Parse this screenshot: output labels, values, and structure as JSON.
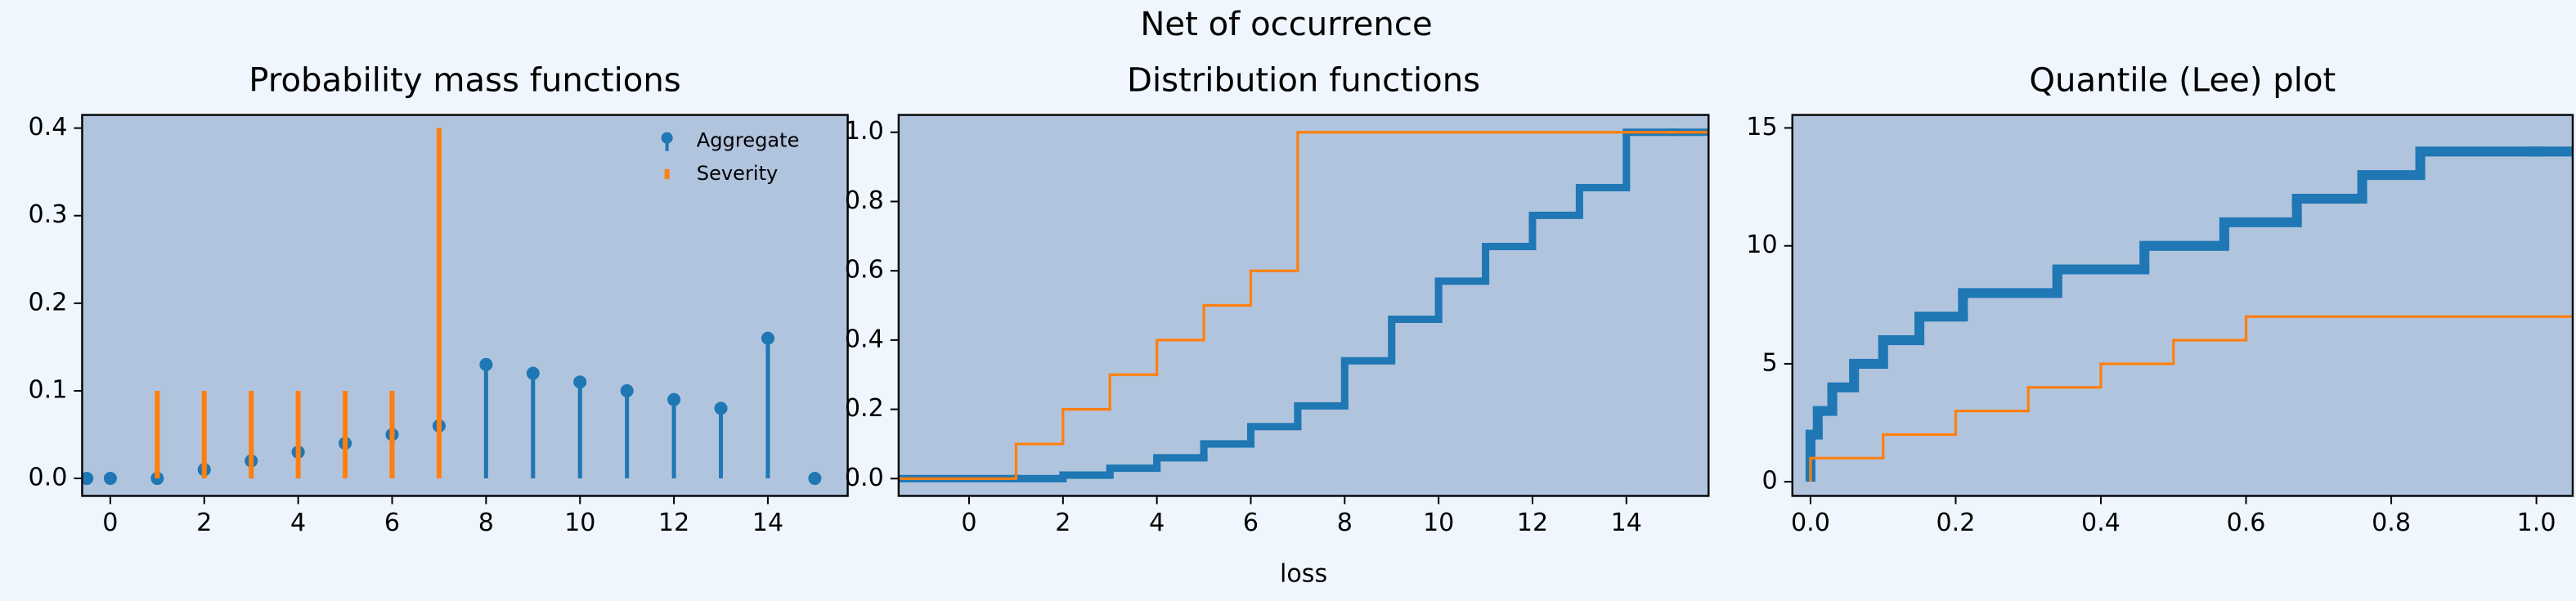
{
  "suptitle": "Net of occurrence",
  "chart_data": [
    {
      "type": "stem",
      "title": "Probability mass functions",
      "xlim": [
        -0.6,
        15.7
      ],
      "xticks": [
        0,
        2,
        4,
        6,
        8,
        10,
        12,
        14
      ],
      "ylim": [
        -0.02,
        0.415
      ],
      "yticks": [
        {
          "value": 0,
          "label": "0.0"
        },
        {
          "value": 0.1,
          "label": "0.1"
        },
        {
          "value": 0.2,
          "label": "0.2"
        },
        {
          "value": 0.3,
          "label": "0.3"
        },
        {
          "value": 0.4,
          "label": "0.4"
        }
      ],
      "legend": "upper right",
      "series": [
        {
          "name": "Aggregate",
          "color": "#1f77b4",
          "marker": "o",
          "x": [
            -0.5,
            0,
            1,
            2,
            3,
            4,
            5,
            6,
            7,
            8,
            9,
            10,
            11,
            12,
            13,
            14,
            15
          ],
          "values": [
            0,
            0,
            0,
            0.01,
            0.02,
            0.03,
            0.04,
            0.05,
            0.06,
            0.13,
            0.12,
            0.11,
            0.1,
            0.09,
            0.08,
            0.16,
            0
          ]
        },
        {
          "name": "Severity",
          "color": "#ff7f0e",
          "x": [
            1,
            2,
            3,
            4,
            5,
            6,
            7
          ],
          "values": [
            0.1,
            0.1,
            0.1,
            0.1,
            0.1,
            0.1,
            0.4
          ]
        }
      ]
    },
    {
      "type": "step",
      "title": "Distribution functions",
      "xlabel": "loss",
      "extend": true,
      "xlim": [
        -1.5,
        15.75
      ],
      "xticks": [
        0,
        2,
        4,
        6,
        8,
        10,
        12,
        14
      ],
      "ylim": [
        -0.05,
        1.05
      ],
      "yticks": [
        {
          "value": 0,
          "label": "0.0"
        },
        {
          "value": 0.2,
          "label": "0.2"
        },
        {
          "value": 0.4,
          "label": "0.4"
        },
        {
          "value": 0.6,
          "label": "0.6"
        },
        {
          "value": 0.8,
          "label": "0.8"
        },
        {
          "value": 1,
          "label": "1.0"
        }
      ],
      "series": [
        {
          "color": "#1f77b4",
          "x": [
            0,
            1,
            2,
            3,
            4,
            5,
            6,
            7,
            8,
            9,
            10,
            11,
            12,
            13,
            14,
            15
          ],
          "values": [
            0,
            0,
            0.01,
            0.03,
            0.06,
            0.1,
            0.15,
            0.21,
            0.34,
            0.46,
            0.57,
            0.67,
            0.76,
            0.84,
            1,
            1
          ]
        },
        {
          "color": "#ff7f0e",
          "x": [
            0,
            1,
            2,
            3,
            4,
            5,
            6,
            7,
            8,
            9,
            10,
            11,
            12,
            13,
            14,
            15
          ],
          "values": [
            0,
            0.1,
            0.2,
            0.3,
            0.4,
            0.5,
            0.6,
            1,
            1,
            1,
            1,
            1,
            1,
            1,
            1,
            1
          ]
        }
      ]
    },
    {
      "type": "step",
      "title": "Quantile (Lee) plot",
      "extend": false,
      "xlim": [
        -0.025,
        1.05
      ],
      "xticks": [
        {
          "value": 0,
          "label": "0.0"
        },
        {
          "value": 0.2,
          "label": "0.2"
        },
        {
          "value": 0.4,
          "label": "0.4"
        },
        {
          "value": 0.6,
          "label": "0.6"
        },
        {
          "value": 0.8,
          "label": "0.8"
        },
        {
          "value": 1,
          "label": "1.0"
        }
      ],
      "ylim": [
        -0.6,
        15.55
      ],
      "yticks": [
        0,
        5,
        10,
        15
      ],
      "series": [
        {
          "color": "#1f77b4",
          "x": [
            0,
            0.01,
            0.03,
            0.06,
            0.1,
            0.15,
            0.21,
            0.34,
            0.46,
            0.57,
            0.67,
            0.76,
            0.84,
            1
          ],
          "values": [
            2,
            3,
            4,
            5,
            6,
            7,
            8,
            9,
            10,
            11,
            12,
            13,
            14,
            14
          ]
        },
        {
          "color": "#ff7f0e",
          "x": [
            0,
            0.1,
            0.2,
            0.3,
            0.4,
            0.5,
            0.6,
            1
          ],
          "values": [
            1,
            2,
            3,
            4,
            5,
            6,
            7,
            7
          ]
        }
      ]
    }
  ]
}
